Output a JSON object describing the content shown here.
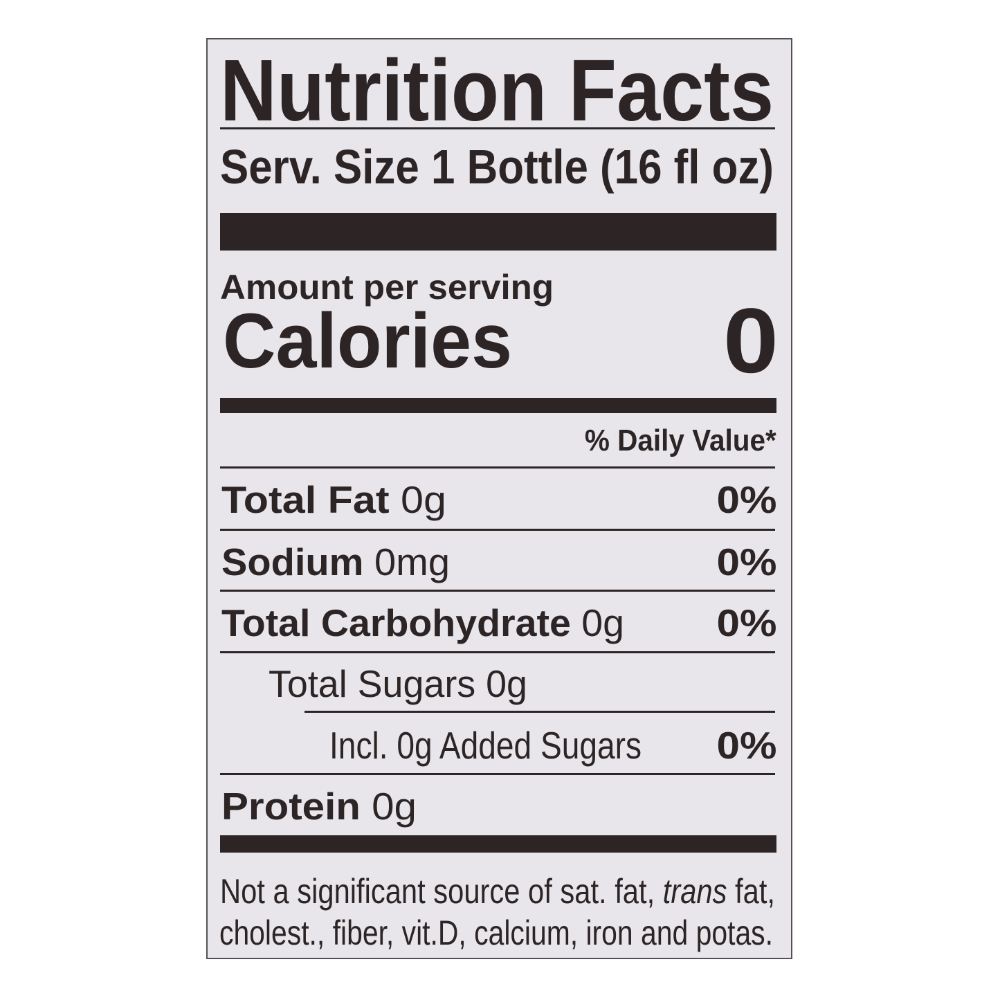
{
  "label": {
    "title": "Nutrition Facts",
    "serving_size": "Serv. Size 1 Bottle (16 fl oz)",
    "amount_per_serving": "Amount per serving",
    "calories_label": "Calories",
    "calories_value": "0",
    "daily_value_header": "% Daily Value*",
    "nutrients": [
      {
        "name": "Total Fat",
        "amount": "0g",
        "dv": "0%"
      },
      {
        "name": "Sodium",
        "amount": "0mg",
        "dv": "0%"
      },
      {
        "name": "Total Carbohydrate",
        "amount": "0g",
        "dv": "0%"
      },
      {
        "name": "Total Sugars 0g",
        "amount": "",
        "dv": ""
      },
      {
        "name": "Incl. 0g Added Sugars",
        "amount": "",
        "dv": "0%"
      },
      {
        "name": "Protein",
        "amount": "0g",
        "dv": ""
      }
    ],
    "footnote": {
      "line1_start": "Not a significant source of sat. fat, ",
      "line1_italic": "trans",
      "line1_end": " fat,",
      "line2": "cholest., fiber, vit.D, calcium, iron and potas."
    }
  },
  "colors": {
    "text": "#2d2525",
    "background": "#e8e6eb"
  }
}
